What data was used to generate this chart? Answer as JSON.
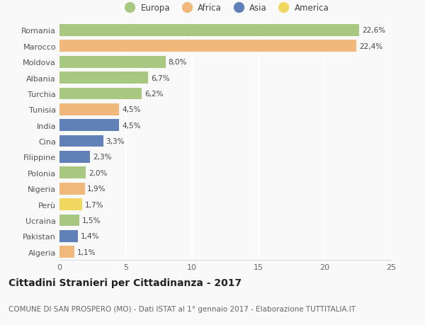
{
  "categories": [
    "Romania",
    "Marocco",
    "Moldova",
    "Albania",
    "Turchia",
    "Tunisia",
    "India",
    "Cina",
    "Filippine",
    "Polonia",
    "Nigeria",
    "Perù",
    "Ucraina",
    "Pakistan",
    "Algeria"
  ],
  "values": [
    22.6,
    22.4,
    8.0,
    6.7,
    6.2,
    4.5,
    4.5,
    3.3,
    2.3,
    2.0,
    1.9,
    1.7,
    1.5,
    1.4,
    1.1
  ],
  "labels": [
    "22,6%",
    "22,4%",
    "8,0%",
    "6,7%",
    "6,2%",
    "4,5%",
    "4,5%",
    "3,3%",
    "2,3%",
    "2,0%",
    "1,9%",
    "1,7%",
    "1,5%",
    "1,4%",
    "1,1%"
  ],
  "continents": [
    "Europa",
    "Africa",
    "Europa",
    "Europa",
    "Europa",
    "Africa",
    "Asia",
    "Asia",
    "Asia",
    "Europa",
    "Africa",
    "America",
    "Europa",
    "Asia",
    "Africa"
  ],
  "colors": {
    "Europa": "#a8c882",
    "Africa": "#f0b87a",
    "Asia": "#6080b8",
    "America": "#f0d860"
  },
  "legend_order": [
    "Europa",
    "Africa",
    "Asia",
    "America"
  ],
  "title": "Cittadini Stranieri per Cittadinanza - 2017",
  "subtitle": "COMUNE DI SAN PROSPERO (MO) - Dati ISTAT al 1° gennaio 2017 - Elaborazione TUTTITALIA.IT",
  "xlim": [
    0,
    25
  ],
  "xticks": [
    0,
    5,
    10,
    15,
    20,
    25
  ],
  "background_color": "#f9f9f9",
  "grid_color": "#e8e8e8",
  "title_fontsize": 10,
  "subtitle_fontsize": 7.5,
  "label_fontsize": 7.5,
  "tick_fontsize": 8,
  "legend_fontsize": 8.5
}
